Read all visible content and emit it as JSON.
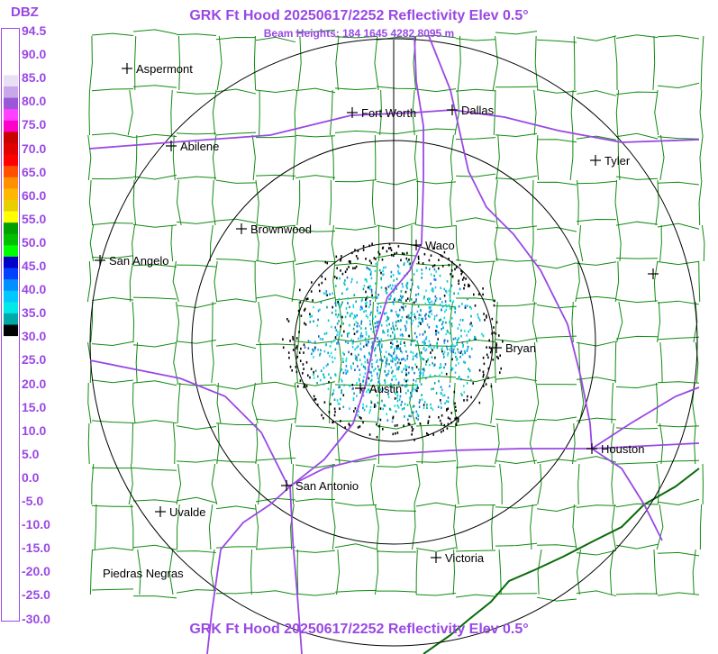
{
  "header": {
    "title": "GRK Ft Hood 20250617/2252 Reflectivity Elev 0.5°",
    "beam_heights": "Beam Heights: 184 1645 4282 8095 m",
    "footer_title": "GRK Ft Hood 20250617/2252 Reflectivity Elev 0.5°"
  },
  "legend": {
    "unit": "DBZ",
    "labels": [
      "94.5",
      "90.0",
      "85.0",
      "80.0",
      "75.0",
      "70.0",
      "65.0",
      "60.0",
      "55.0",
      "50.0",
      "45.0",
      "40.0",
      "35.0",
      "30.0",
      "25.0",
      "20.0",
      "15.0",
      "10.0",
      "5.0",
      "0.0",
      "-5.0",
      "-10.0",
      "-15.0",
      "-20.0",
      "-25.0",
      "-30.0"
    ],
    "colors": [
      "#ffffff",
      "#ffffff",
      "#ffffff",
      "#ffffff",
      "#e8e0f4",
      "#c8a8e8",
      "#9a58d8",
      "#ff40ff",
      "#ff00c8",
      "#c80000",
      "#e00000",
      "#ff0000",
      "#ff5000",
      "#ff9000",
      "#ffb800",
      "#e8d000",
      "#ffff00",
      "#00a000",
      "#00c000",
      "#00ff00",
      "#0000c8",
      "#0040ff",
      "#0090ff",
      "#00c8ff",
      "#00e8e8",
      "#00a8a8",
      "#000000",
      "#ffffff",
      "#ffffff",
      "#ffffff",
      "#ffffff",
      "#ffffff",
      "#ffffff",
      "#ffffff",
      "#ffffff",
      "#ffffff",
      "#ffffff",
      "#ffffff",
      "#ffffff",
      "#ffffff",
      "#ffffff",
      "#ffffff",
      "#ffffff",
      "#ffffff",
      "#ffffff",
      "#ffffff",
      "#ffffff",
      "#ffffff",
      "#ffffff",
      "#ffffff",
      "#ffffff",
      "#ffffff"
    ]
  },
  "cities": [
    {
      "name": "Aspermont"
    },
    {
      "name": "Fort Worth"
    },
    {
      "name": "Dallas"
    },
    {
      "name": "Abilene"
    },
    {
      "name": "Tyler"
    },
    {
      "name": "Brownwood"
    },
    {
      "name": "Waco"
    },
    {
      "name": "San Angelo"
    },
    {
      "name": "Bryan"
    },
    {
      "name": "Austin"
    },
    {
      "name": "Houston"
    },
    {
      "name": "San Antonio"
    },
    {
      "name": "Uvalde"
    },
    {
      "name": "Victoria"
    },
    {
      "name": "Piedras Negras"
    }
  ],
  "colors": {
    "accent": "#9a48e4",
    "county_lines": "#118a11",
    "highways": "#9a48e4",
    "range_rings": "#000000"
  }
}
